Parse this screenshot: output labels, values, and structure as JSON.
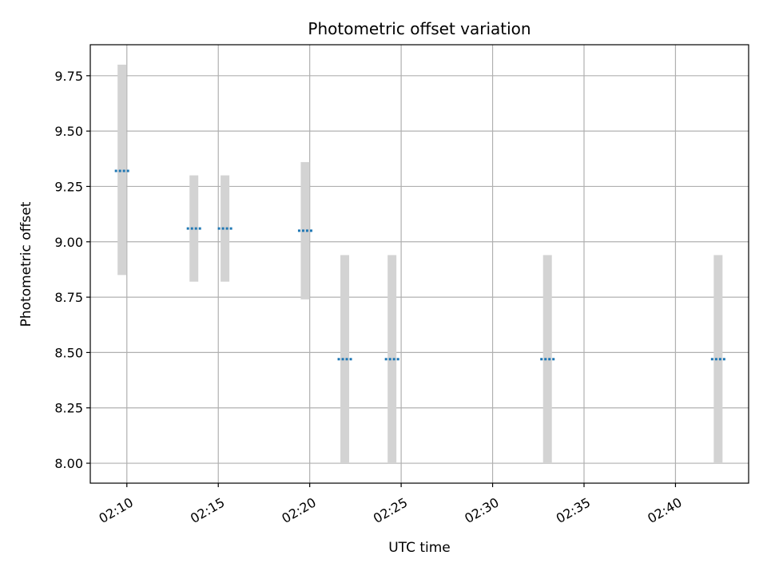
{
  "chart_data": {
    "type": "scatter",
    "title": "Photometric offset variation",
    "xlabel": "UTC time",
    "ylabel": "Photometric offset",
    "xlim": [
      "02:08:00",
      "02:44:00"
    ],
    "ylim": [
      7.91,
      9.89
    ],
    "grid": true,
    "xticks": [
      "02:10",
      "02:15",
      "02:20",
      "02:25",
      "02:30",
      "02:35",
      "02:40"
    ],
    "yticks": [
      "8.00",
      "8.25",
      "8.50",
      "8.75",
      "9.00",
      "9.25",
      "9.50",
      "9.75"
    ],
    "colors": {
      "point": "#1f77b4",
      "errorbar": "#d3d3d3",
      "grid": "#b0b0b0"
    },
    "points": [
      {
        "time": "02:09:44",
        "y": 9.32,
        "ylow": 8.85,
        "yhigh": 9.8
      },
      {
        "time": "02:13:40",
        "y": 9.06,
        "ylow": 8.82,
        "yhigh": 9.3
      },
      {
        "time": "02:15:22",
        "y": 9.06,
        "ylow": 8.82,
        "yhigh": 9.3
      },
      {
        "time": "02:19:45",
        "y": 9.05,
        "ylow": 8.74,
        "yhigh": 9.36
      },
      {
        "time": "02:21:55",
        "y": 8.47,
        "ylow": 8.0,
        "yhigh": 8.94
      },
      {
        "time": "02:24:30",
        "y": 8.47,
        "ylow": 8.0,
        "yhigh": 8.94
      },
      {
        "time": "02:33:00",
        "y": 8.47,
        "ylow": 8.0,
        "yhigh": 8.94
      },
      {
        "time": "02:42:20",
        "y": 8.47,
        "ylow": 8.0,
        "yhigh": 8.94
      }
    ]
  }
}
